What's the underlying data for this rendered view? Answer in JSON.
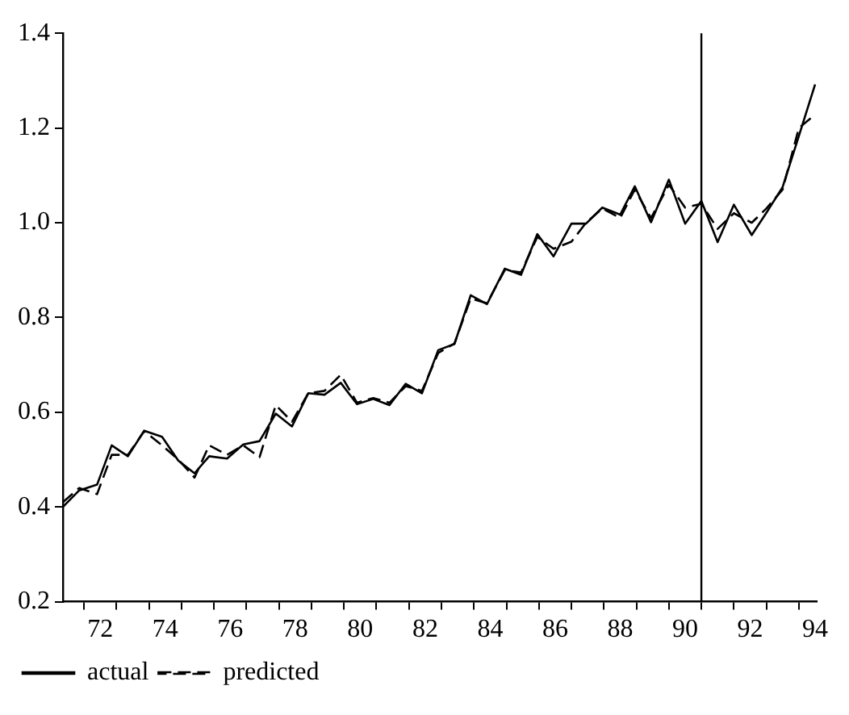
{
  "chart_data": {
    "type": "line",
    "x": [
      71.35,
      71.85,
      72.4,
      72.85,
      73.35,
      73.85,
      74.4,
      74.9,
      75.4,
      75.85,
      76.4,
      76.9,
      77.4,
      77.9,
      78.4,
      78.9,
      79.4,
      79.9,
      80.4,
      80.9,
      81.4,
      81.9,
      82.4,
      82.9,
      83.4,
      83.9,
      84.4,
      84.95,
      85.45,
      85.95,
      86.45,
      87.0,
      87.45,
      87.95,
      88.5,
      88.95,
      89.45,
      90.0,
      90.5,
      91.0,
      91.5,
      92.0,
      92.55,
      93.0,
      93.5,
      94.0,
      94.5
    ],
    "series": [
      {
        "name": "actual",
        "color": "#000000",
        "line_style": "solid",
        "values": [
          0.4,
          0.435,
          0.447,
          0.53,
          0.507,
          0.561,
          0.548,
          0.498,
          0.471,
          0.507,
          0.502,
          0.532,
          0.539,
          0.597,
          0.57,
          0.64,
          0.637,
          0.662,
          0.617,
          0.628,
          0.615,
          0.66,
          0.64,
          0.731,
          0.744,
          0.847,
          0.828,
          0.903,
          0.89,
          0.976,
          0.929,
          0.998,
          0.998,
          1.032,
          1.017,
          1.077,
          1.001,
          1.091,
          0.998,
          1.046,
          0.959,
          1.038,
          0.974,
          1.021,
          1.075,
          1.183,
          1.292
        ]
      },
      {
        "name": "predicted",
        "color": "#000000",
        "line_style": "dashed",
        "values": [
          0.41,
          0.44,
          0.427,
          0.51,
          0.51,
          0.56,
          0.53,
          0.5,
          0.462,
          0.53,
          0.51,
          0.53,
          0.505,
          0.615,
          0.58,
          0.64,
          0.645,
          0.679,
          0.62,
          0.63,
          0.62,
          0.655,
          0.645,
          0.725,
          0.745,
          0.84,
          0.83,
          0.9,
          0.895,
          0.97,
          0.945,
          0.96,
          1.0,
          1.03,
          1.01,
          1.07,
          1.01,
          1.08,
          1.032,
          1.04,
          0.987,
          1.02,
          1.0,
          1.03,
          1.07,
          1.2,
          1.228
        ]
      }
    ],
    "xlim": [
      71.35,
      94.55
    ],
    "xticks": [
      {
        "value": 72,
        "label": null
      },
      {
        "value": 72.5,
        "label": "72"
      },
      {
        "value": 73,
        "label": null
      },
      {
        "value": 74,
        "label": null
      },
      {
        "value": 74.5,
        "label": "74"
      },
      {
        "value": 75,
        "label": null
      },
      {
        "value": 76,
        "label": null
      },
      {
        "value": 76.5,
        "label": "76"
      },
      {
        "value": 77,
        "label": null
      },
      {
        "value": 78,
        "label": null
      },
      {
        "value": 78.5,
        "label": "78"
      },
      {
        "value": 79,
        "label": null
      },
      {
        "value": 80,
        "label": null
      },
      {
        "value": 80.5,
        "label": "80"
      },
      {
        "value": 81,
        "label": null
      },
      {
        "value": 82,
        "label": null
      },
      {
        "value": 82.5,
        "label": "82"
      },
      {
        "value": 83,
        "label": null
      },
      {
        "value": 84,
        "label": null
      },
      {
        "value": 84.5,
        "label": "84"
      },
      {
        "value": 85,
        "label": null
      },
      {
        "value": 86,
        "label": null
      },
      {
        "value": 86.5,
        "label": "86"
      },
      {
        "value": 87,
        "label": null
      },
      {
        "value": 88,
        "label": null
      },
      {
        "value": 88.5,
        "label": "88"
      },
      {
        "value": 89,
        "label": null
      },
      {
        "value": 90,
        "label": null
      },
      {
        "value": 90.5,
        "label": "90"
      },
      {
        "value": 91,
        "label": null
      },
      {
        "value": 92,
        "label": null
      },
      {
        "value": 92.5,
        "label": "92"
      },
      {
        "value": 93,
        "label": null
      },
      {
        "value": 94,
        "label": null
      },
      {
        "value": 94.5,
        "label": "94"
      }
    ],
    "ylim": [
      0.2,
      1.4
    ],
    "yticks": [
      {
        "value": 0.2,
        "label": "0.2"
      },
      {
        "value": 0.4,
        "label": "0.4"
      },
      {
        "value": 0.6,
        "label": "0.6"
      },
      {
        "value": 0.8,
        "label": "0.8"
      },
      {
        "value": 1.0,
        "label": "1.0"
      },
      {
        "value": 1.2,
        "label": "1.2"
      },
      {
        "value": 1.4,
        "label": "1.4"
      }
    ],
    "ref_lines": [
      {
        "axis": "x",
        "value": 91,
        "color": "#000000"
      }
    ],
    "grid": false,
    "legend": "bottom left",
    "marker": "none"
  }
}
